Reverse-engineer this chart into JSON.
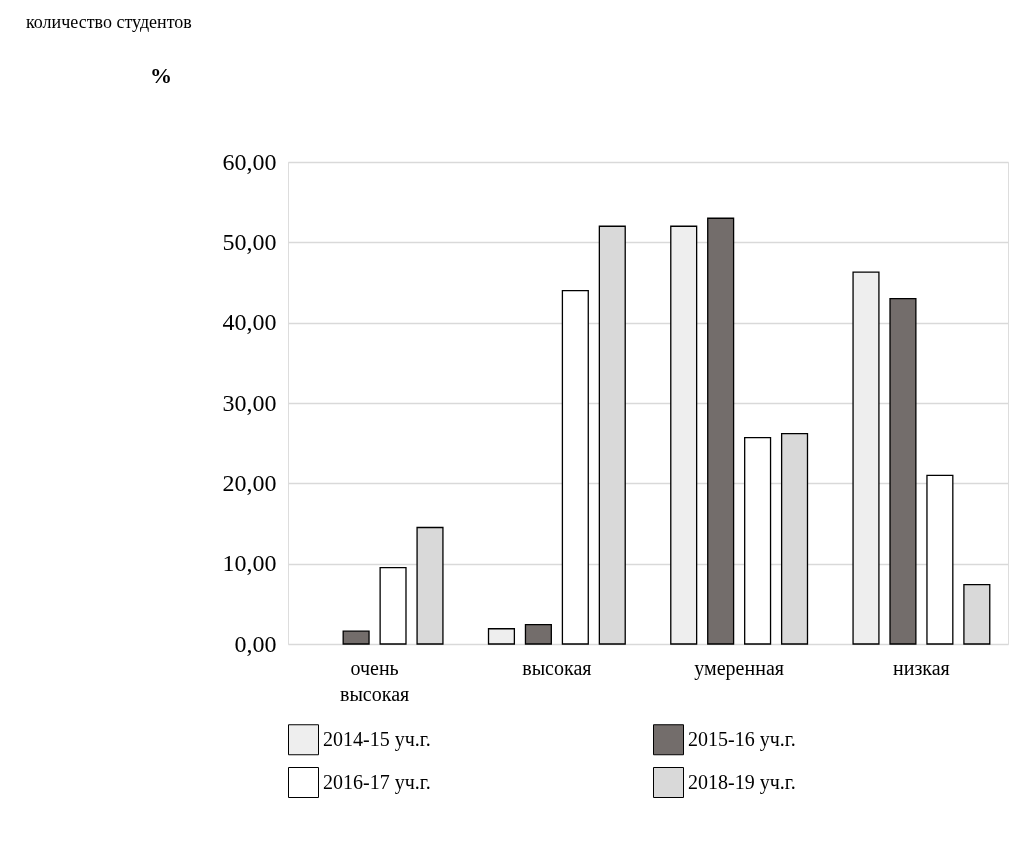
{
  "chart_data": {
    "type": "bar",
    "annotations": [
      "количество студентов",
      "%"
    ],
    "categories": [
      "очень высокая",
      "высокая",
      "умеренная",
      "низкая"
    ],
    "series": [
      {
        "name": "2014-15 уч.г.",
        "color": "#eeeeee",
        "values": [
          null,
          1.9,
          52.0,
          46.3
        ]
      },
      {
        "name": "2015-16 уч.г.",
        "color": "#736d6b",
        "values": [
          1.6,
          2.4,
          53.0,
          43.0
        ]
      },
      {
        "name": "2016-17 уч.г.",
        "color": "#ffffff",
        "values": [
          9.5,
          44.0,
          25.7,
          21.0
        ]
      },
      {
        "name": "2018-19 уч.г.",
        "color": "#d9d9d9",
        "values": [
          14.5,
          52.0,
          26.2,
          7.4
        ]
      }
    ],
    "ylim": [
      0,
      60
    ],
    "yticks": [
      {
        "value": 0,
        "label": "0,00"
      },
      {
        "value": 10,
        "label": "10,00"
      },
      {
        "value": 20,
        "label": "20,00"
      },
      {
        "value": 30,
        "label": "30,00"
      },
      {
        "value": 40,
        "label": "40,00"
      },
      {
        "value": 50,
        "label": "50,00"
      },
      {
        "value": 60,
        "label": "60,00"
      }
    ],
    "grid": "y",
    "legend": "bottom"
  }
}
